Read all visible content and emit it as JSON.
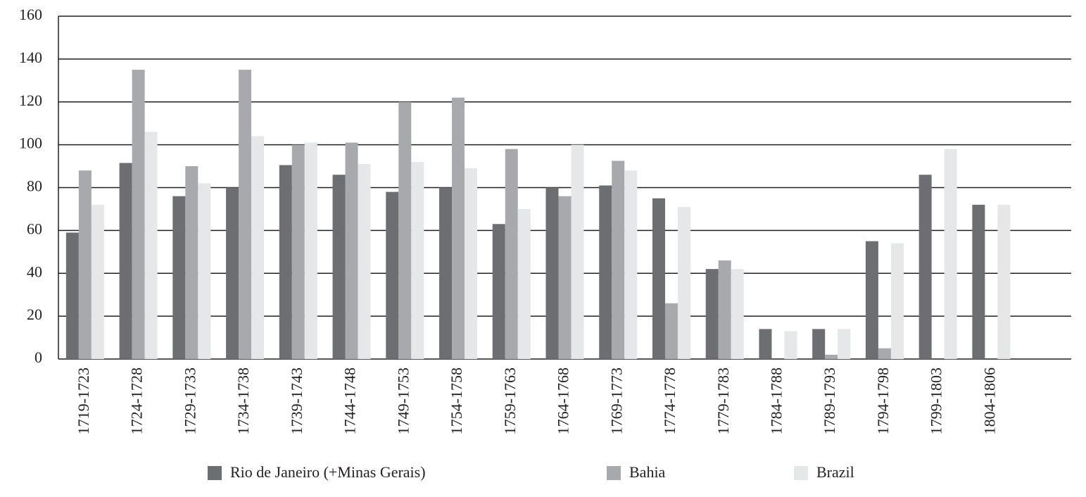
{
  "chart_data": {
    "type": "bar",
    "categories": [
      "1719-1723",
      "1724-1728",
      "1729-1733",
      "1734-1738",
      "1739-1743",
      "1744-1748",
      "1749-1753",
      "1754-1758",
      "1759-1763",
      "1764-1768",
      "1769-1773",
      "1774-1778",
      "1779-1783",
      "1784-1788",
      "1789-1793",
      "1794-1798",
      "1799-1803",
      "1804-1806",
      null
    ],
    "series": [
      {
        "name": "Rio de Janeiro (+Minas Gerais)",
        "color": "#6d6e71",
        "values": [
          59,
          91.5,
          76,
          80,
          90.5,
          86,
          78,
          80,
          63,
          80,
          81,
          75,
          42,
          14,
          14,
          55,
          86,
          72,
          null
        ]
      },
      {
        "name": "Bahia",
        "color": "#a7a9ac",
        "values": [
          88,
          135,
          90,
          135,
          100,
          101,
          120,
          122,
          98,
          76,
          92.5,
          26,
          46,
          null,
          2,
          5,
          null,
          null,
          null
        ]
      },
      {
        "name": "Brazil",
        "color": "#e6e7e8",
        "values": [
          72,
          106,
          82,
          104,
          101,
          91,
          92,
          89,
          70,
          100,
          88,
          71,
          42,
          13,
          14,
          54,
          98,
          72,
          null
        ]
      }
    ],
    "ylim": [
      0,
      160
    ],
    "yticks": [
      0,
      20,
      40,
      60,
      80,
      100,
      120,
      140,
      160
    ],
    "grid": true
  }
}
